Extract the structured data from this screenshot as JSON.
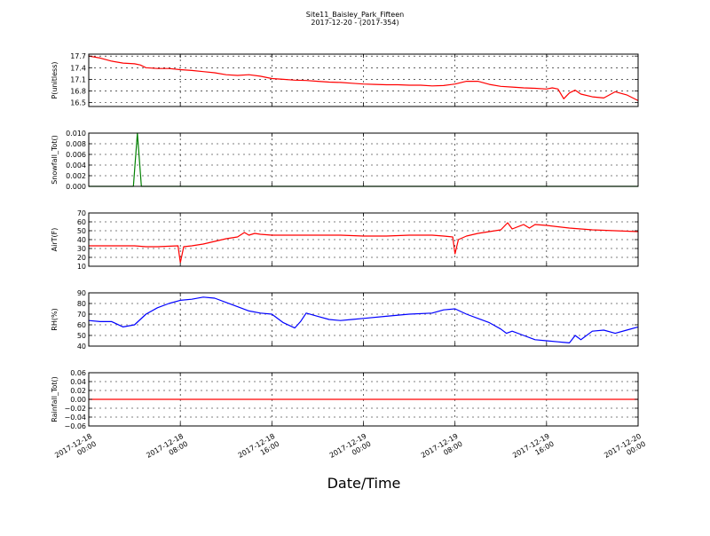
{
  "header": {
    "title": "Site11_Baisley_Park_Fifteen",
    "subtitle": "2017-12-20 - (2017-354)"
  },
  "xlabel": "Date/Time",
  "x_ticks": [
    {
      "t": 0,
      "line1": "2017-12-18",
      "line2": "00:00"
    },
    {
      "t": 8,
      "line1": "2017-12-18",
      "line2": "08:00"
    },
    {
      "t": 16,
      "line1": "2017-12-18",
      "line2": "16:00"
    },
    {
      "t": 24,
      "line1": "2017-12-19",
      "line2": "00:00"
    },
    {
      "t": 32,
      "line1": "2017-12-19",
      "line2": "08:00"
    },
    {
      "t": 40,
      "line1": "2017-12-19",
      "line2": "16:00"
    },
    {
      "t": 48,
      "line1": "2017-12-20",
      "line2": "00:00"
    }
  ],
  "chart_data": [
    {
      "type": "line",
      "ylabel": "P(unitless)",
      "ylim": [
        16.4,
        17.75
      ],
      "yticks": [
        16.5,
        16.8,
        17.1,
        17.4,
        17.7
      ],
      "ytick_labels": [
        "16.5",
        "16.8",
        "17.1",
        "17.4",
        "17.7"
      ],
      "color": "#ff0000",
      "xlim": [
        "2017-12-18 00:00",
        "2017-12-20 00:00"
      ],
      "grid": true,
      "x_hours": [
        0,
        1,
        2,
        3,
        4,
        4.5,
        5,
        6,
        7,
        8,
        9,
        10,
        11,
        12,
        13,
        14,
        15,
        16,
        17,
        18,
        19,
        20,
        21,
        22,
        23,
        24,
        25,
        26,
        27,
        28,
        29,
        30,
        31,
        32,
        33,
        34,
        35,
        36,
        37,
        38,
        39,
        40,
        40.5,
        41,
        41.5,
        42,
        42.5,
        43,
        44,
        45,
        45.5,
        46,
        47,
        48
      ],
      "y": [
        17.7,
        17.65,
        17.57,
        17.52,
        17.5,
        17.47,
        17.4,
        17.38,
        17.38,
        17.35,
        17.33,
        17.3,
        17.27,
        17.22,
        17.2,
        17.22,
        17.18,
        17.12,
        17.1,
        17.08,
        17.07,
        17.05,
        17.03,
        17.02,
        17.0,
        16.98,
        16.97,
        16.96,
        16.96,
        16.95,
        16.95,
        16.93,
        16.94,
        16.98,
        17.05,
        17.05,
        16.97,
        16.92,
        16.9,
        16.88,
        16.87,
        16.85,
        16.88,
        16.85,
        16.6,
        16.75,
        16.82,
        16.72,
        16.65,
        16.62,
        16.7,
        16.78,
        16.7,
        16.55
      ]
    },
    {
      "type": "line",
      "ylabel": "Snowfall_Tot()",
      "ylim": [
        0,
        0.01
      ],
      "yticks": [
        0,
        0.002,
        0.004,
        0.006,
        0.008,
        0.01
      ],
      "ytick_labels": [
        "0.000",
        "0.002",
        "0.004",
        "0.006",
        "0.008",
        "0.010"
      ],
      "color": "#008000",
      "xlim": [
        "2017-12-18 00:00",
        "2017-12-20 00:00"
      ],
      "grid": true,
      "x_hours": [
        0,
        3.9,
        4.25,
        4.6,
        48
      ],
      "y": [
        0,
        0,
        0.01,
        0,
        0
      ]
    },
    {
      "type": "line",
      "ylabel": "AirT(F)",
      "ylim": [
        10,
        70
      ],
      "yticks": [
        10,
        20,
        30,
        40,
        50,
        60,
        70
      ],
      "ytick_labels": [
        "10",
        "20",
        "30",
        "40",
        "50",
        "60",
        "70"
      ],
      "color": "#ff0000",
      "xlim": [
        "2017-12-18 00:00",
        "2017-12-20 00:00"
      ],
      "grid": true,
      "x_hours": [
        0,
        2,
        4,
        5,
        6,
        7.8,
        8,
        8.3,
        9,
        10,
        11,
        12,
        13,
        13.6,
        14,
        14.5,
        15,
        16,
        17,
        18,
        20,
        22,
        24,
        26,
        28,
        30,
        31,
        31.8,
        32,
        32.3,
        33,
        34,
        35,
        36,
        36.6,
        37,
        38,
        38.5,
        39,
        40,
        42,
        44,
        46,
        48
      ],
      "y": [
        33,
        33,
        33,
        32,
        32,
        33,
        14,
        32,
        33,
        35,
        38,
        41,
        43,
        48,
        45,
        47,
        46,
        45,
        45,
        45,
        45,
        45,
        44,
        44,
        45,
        45,
        44,
        43,
        24,
        40,
        44,
        47,
        49,
        51,
        59,
        52,
        57,
        53,
        57,
        56,
        53,
        51,
        50,
        49
      ]
    },
    {
      "type": "line",
      "ylabel": "RH(%)",
      "ylim": [
        40,
        90
      ],
      "yticks": [
        40,
        50,
        60,
        70,
        80,
        90
      ],
      "ytick_labels": [
        "40",
        "50",
        "60",
        "70",
        "80",
        "90"
      ],
      "color": "#0000ff",
      "xlim": [
        "2017-12-18 00:00",
        "2017-12-20 00:00"
      ],
      "grid": true,
      "x_hours": [
        0,
        1,
        2,
        3,
        4,
        5,
        6,
        7,
        8,
        9,
        10,
        11,
        12,
        13,
        14,
        15,
        16,
        17,
        18,
        18.5,
        19,
        20,
        21,
        22,
        23,
        24,
        26,
        28,
        30,
        31,
        32,
        33,
        34,
        35,
        36,
        36.5,
        37,
        38,
        39,
        40,
        41,
        42,
        42.5,
        43,
        44,
        45,
        46,
        47,
        48
      ],
      "y": [
        64,
        63,
        63,
        58,
        60,
        70,
        76,
        80,
        83,
        84,
        86,
        85,
        81,
        77,
        73,
        71,
        70,
        62,
        57,
        63,
        71,
        68,
        65,
        64,
        65,
        66,
        68,
        70,
        71,
        74,
        75,
        70,
        66,
        62,
        56,
        52,
        54,
        50,
        46,
        45,
        44,
        43,
        50,
        46,
        54,
        55,
        52,
        55,
        58
      ]
    },
    {
      "type": "line",
      "ylabel": "Rainfall_Tot()",
      "ylim": [
        -0.06,
        0.06
      ],
      "yticks": [
        -0.06,
        -0.04,
        -0.02,
        0,
        0.02,
        0.04,
        0.06
      ],
      "ytick_labels": [
        "−0.06",
        "−0.04",
        "−0.02",
        "0.00",
        "0.02",
        "0.04",
        "0.06"
      ],
      "color": "#ff0000",
      "xlim": [
        "2017-12-18 00:00",
        "2017-12-20 00:00"
      ],
      "grid": true,
      "x_hours": [
        0,
        48
      ],
      "y": [
        0,
        0
      ]
    }
  ]
}
